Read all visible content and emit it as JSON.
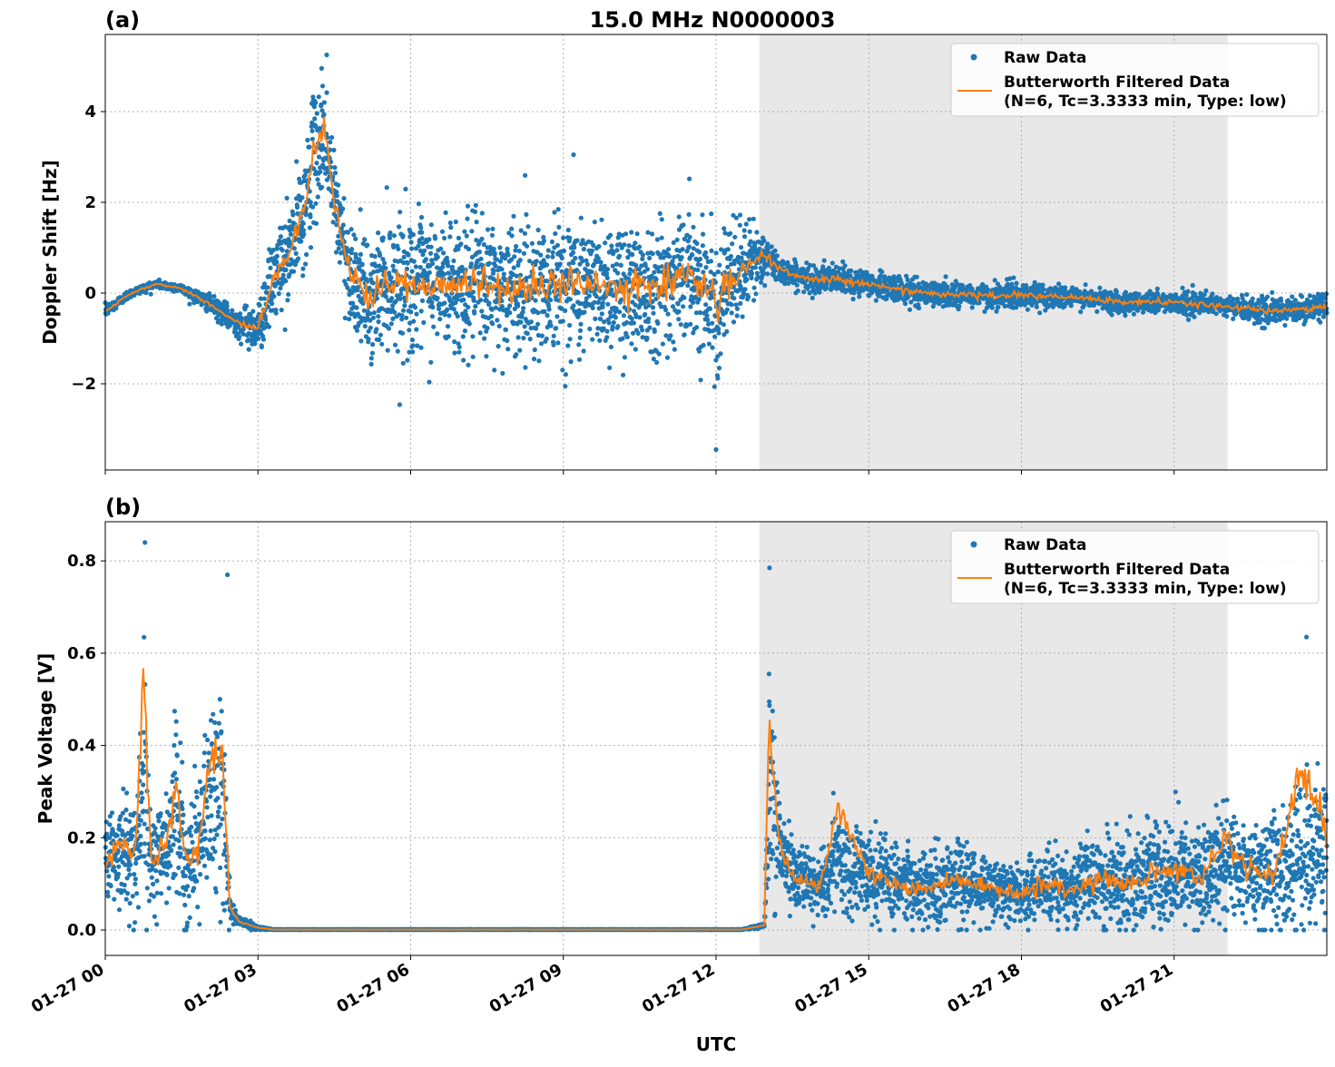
{
  "figure": {
    "title": "15.0 MHz N0000003",
    "xlabel": "UTC",
    "x_tick_labels": [
      "01-27 00",
      "01-27 03",
      "01-27 06",
      "01-27 09",
      "01-27 12",
      "01-27 15",
      "01-27 18",
      "01-27 21"
    ],
    "shaded_region_hours": [
      12.85,
      22.05
    ],
    "shade_color": "#e8e8e8",
    "raw_color": "#1f77b4",
    "filtered_color": "#ff7f0e",
    "legend": {
      "placement": "top-right",
      "raw_label": "Raw Data",
      "filtered_label_line1": "Butterworth Filtered Data",
      "filtered_label_line2": "(N=6, Tc=3.3333 min, Type: low)"
    }
  },
  "chart_data": [
    {
      "type": "scatter",
      "panel_label": "(a)",
      "ylabel": "Doppler Shift [Hz]",
      "xlim_hours": [
        0,
        24
      ],
      "ylim": [
        -3.9,
        5.7
      ],
      "yticks": [
        -2,
        0,
        2,
        4
      ],
      "ytick_labels": [
        "−2",
        "0",
        "2",
        "4"
      ],
      "grid": true,
      "series": [
        {
          "name": "Raw Data",
          "style": "points",
          "x_hours": [
            0,
            0.5,
            1,
            1.5,
            2,
            2.5,
            3,
            3.3,
            3.6,
            3.9,
            4.1,
            4.3,
            4.5,
            4.8,
            5.2,
            5.5,
            6,
            7,
            8,
            9,
            10,
            11,
            11.5,
            12,
            12.5,
            12.9,
            13.3,
            13.8,
            14.5,
            15,
            16,
            17,
            18,
            19,
            20,
            21,
            22,
            23,
            24
          ],
          "center": [
            -0.4,
            0.0,
            0.2,
            0.1,
            -0.2,
            -0.6,
            -0.8,
            0.3,
            0.8,
            1.8,
            3.0,
            3.6,
            2.0,
            0.5,
            -0.3,
            0.3,
            0.2,
            0.2,
            0.1,
            0.2,
            0.1,
            0.2,
            0.5,
            -0.2,
            0.5,
            0.8,
            0.5,
            0.3,
            0.3,
            0.2,
            0.0,
            -0.05,
            -0.05,
            -0.1,
            -0.2,
            -0.2,
            -0.3,
            -0.4,
            -0.3
          ],
          "spread": [
            0.15,
            0.1,
            0.1,
            0.1,
            0.2,
            0.3,
            0.6,
            1.0,
            1.2,
            1.3,
            1.5,
            1.6,
            1.2,
            1.2,
            1.4,
            1.5,
            1.6,
            1.6,
            1.6,
            1.6,
            1.6,
            1.6,
            1.4,
            1.6,
            1.2,
            0.6,
            0.3,
            0.3,
            0.35,
            0.3,
            0.3,
            0.3,
            0.3,
            0.25,
            0.25,
            0.25,
            0.25,
            0.3,
            0.3
          ],
          "notable_points": [
            {
              "x_hours": 4.35,
              "y": 5.25
            },
            {
              "x_hours": 12.0,
              "y": -3.45
            },
            {
              "x_hours": 9.2,
              "y": 3.05
            }
          ]
        },
        {
          "name": "Butterworth Filtered Data (N=6, Tc=3.3333 min, Type: low)",
          "style": "line",
          "x_hours": [
            0,
            0.5,
            1,
            1.5,
            2,
            2.5,
            3,
            3.3,
            3.6,
            3.9,
            4.1,
            4.3,
            4.5,
            4.8,
            5.2,
            5.5,
            6,
            7,
            8,
            9,
            10,
            11,
            11.5,
            12,
            12.5,
            12.9,
            13.3,
            13.8,
            14.5,
            15,
            16,
            17,
            18,
            19,
            20,
            21,
            22,
            23,
            24
          ],
          "values": [
            -0.4,
            0.0,
            0.2,
            0.1,
            -0.2,
            -0.6,
            -0.8,
            0.3,
            0.8,
            1.8,
            3.0,
            3.6,
            2.0,
            0.5,
            -0.3,
            0.3,
            0.2,
            0.2,
            0.1,
            0.2,
            0.1,
            0.2,
            0.5,
            -0.2,
            0.5,
            0.8,
            0.5,
            0.3,
            0.3,
            0.2,
            0.0,
            -0.05,
            -0.05,
            -0.1,
            -0.2,
            -0.2,
            -0.3,
            -0.4,
            -0.3
          ]
        }
      ]
    },
    {
      "type": "scatter",
      "panel_label": "(b)",
      "ylabel": "Peak Voltage [V]",
      "xlim_hours": [
        0,
        24
      ],
      "ylim": [
        -0.055,
        0.885
      ],
      "yticks": [
        0.0,
        0.2,
        0.4,
        0.6,
        0.8
      ],
      "ytick_labels": [
        "0.0",
        "0.2",
        "0.4",
        "0.6",
        "0.8"
      ],
      "grid": true,
      "series": [
        {
          "name": "Raw Data",
          "style": "points",
          "x_hours": [
            0,
            0.3,
            0.6,
            0.75,
            0.9,
            1.2,
            1.4,
            1.6,
            1.8,
            2.1,
            2.3,
            2.45,
            2.6,
            3.0,
            3.3,
            6,
            9,
            12.5,
            12.95,
            13.05,
            13.2,
            13.5,
            14,
            14.4,
            15,
            15.5,
            16,
            16.5,
            17,
            17.5,
            18,
            18.5,
            19,
            19.5,
            20,
            20.5,
            21,
            21.5,
            22,
            22.5,
            23,
            23.5,
            24
          ],
          "center": [
            0.15,
            0.18,
            0.16,
            0.32,
            0.15,
            0.18,
            0.25,
            0.14,
            0.18,
            0.3,
            0.32,
            0.05,
            0.02,
            0.005,
            0.001,
            0.001,
            0.001,
            0.001,
            0.01,
            0.35,
            0.2,
            0.12,
            0.09,
            0.15,
            0.12,
            0.1,
            0.09,
            0.11,
            0.1,
            0.09,
            0.08,
            0.1,
            0.09,
            0.11,
            0.1,
            0.12,
            0.13,
            0.11,
            0.15,
            0.12,
            0.13,
            0.16,
            0.18
          ],
          "spread": [
            0.1,
            0.12,
            0.12,
            0.3,
            0.12,
            0.14,
            0.2,
            0.12,
            0.14,
            0.2,
            0.25,
            0.03,
            0.015,
            0.004,
            0.0005,
            0.0005,
            0.0005,
            0.0005,
            0.005,
            0.3,
            0.12,
            0.08,
            0.07,
            0.12,
            0.1,
            0.09,
            0.08,
            0.1,
            0.09,
            0.08,
            0.07,
            0.09,
            0.08,
            0.1,
            0.1,
            0.12,
            0.13,
            0.11,
            0.14,
            0.12,
            0.14,
            0.2,
            0.2
          ],
          "notable_points": [
            {
              "x_hours": 0.78,
              "y": 0.84
            },
            {
              "x_hours": 2.4,
              "y": 0.77
            },
            {
              "x_hours": 13.05,
              "y": 0.785
            },
            {
              "x_hours": 23.6,
              "y": 0.635
            }
          ]
        },
        {
          "name": "Butterworth Filtered Data (N=6, Tc=3.3333 min, Type: low)",
          "style": "line",
          "x_hours": [
            0,
            0.3,
            0.6,
            0.75,
            0.9,
            1.2,
            1.4,
            1.6,
            1.8,
            2.1,
            2.3,
            2.45,
            2.6,
            3.0,
            3.3,
            6,
            9,
            12.5,
            12.95,
            13.05,
            13.2,
            13.5,
            14,
            14.4,
            15,
            15.5,
            16,
            16.5,
            17,
            17.5,
            18,
            18.5,
            19,
            19.5,
            20,
            20.5,
            21,
            21.5,
            22,
            22.5,
            23,
            23.5,
            24
          ],
          "values": [
            0.15,
            0.18,
            0.16,
            0.58,
            0.15,
            0.18,
            0.32,
            0.14,
            0.18,
            0.38,
            0.4,
            0.05,
            0.02,
            0.005,
            0.001,
            0.001,
            0.001,
            0.001,
            0.01,
            0.48,
            0.2,
            0.12,
            0.09,
            0.27,
            0.12,
            0.1,
            0.09,
            0.11,
            0.1,
            0.09,
            0.08,
            0.1,
            0.09,
            0.11,
            0.1,
            0.12,
            0.13,
            0.11,
            0.2,
            0.12,
            0.13,
            0.35,
            0.22
          ]
        }
      ]
    }
  ]
}
